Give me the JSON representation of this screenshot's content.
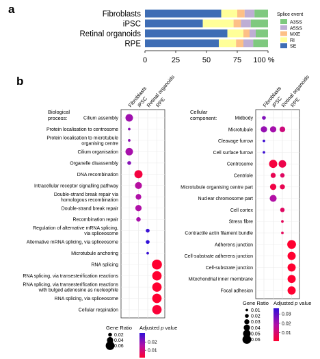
{
  "panel_a": {
    "label": "a",
    "chart_data": {
      "type": "bar",
      "orientation": "horizontal",
      "stacked": true,
      "categories": [
        "Fibroblasts",
        "iPSC",
        "Retinal organoids",
        "RPE"
      ],
      "xlim": [
        0,
        100
      ],
      "x_ticks": [
        "0",
        "25",
        "50",
        "75",
        "100 %"
      ],
      "legend": {
        "title": "Splice event",
        "placement": "right"
      },
      "series": [
        {
          "name": "SE",
          "color": "#3e6db5",
          "values": [
            62,
            47,
            67,
            60
          ]
        },
        {
          "name": "RI",
          "color": "#ffff99",
          "values": [
            13,
            25,
            13,
            14
          ]
        },
        {
          "name": "MXE",
          "color": "#fdc086",
          "values": [
            6,
            6,
            5,
            6
          ]
        },
        {
          "name": "A5SS",
          "color": "#beaed4",
          "values": [
            8,
            8,
            5,
            8
          ]
        },
        {
          "name": "A3SS",
          "color": "#7fc97f",
          "values": [
            11,
            14,
            10,
            12
          ]
        }
      ]
    }
  },
  "panel_b": {
    "label": "b",
    "columns": [
      "Fibroblasts",
      "iPSC",
      "Retinal organoids",
      "RPE"
    ],
    "left": {
      "title": [
        "Biological",
        "process:"
      ],
      "size_legend": {
        "title": "Gene Ratio",
        "values": [
          "0.02",
          "0.04",
          "0.06"
        ]
      },
      "color_legend": {
        "title_prefix": "Adjusted",
        "title_italic": "p",
        "title_suffix": "value",
        "ticks": [
          "0.02",
          "0.01"
        ]
      },
      "chart_data": {
        "type": "scatter",
        "x": [
          "Fibroblasts",
          "iPSC",
          "Retinal organoids",
          "RPE"
        ],
        "terms": [
          {
            "label": [
              "Cilium assembly"
            ],
            "col": "Fibroblasts",
            "gene_ratio": 0.05,
            "p_adj": 0.018
          },
          {
            "label": [
              "Protein localisation to centrosome"
            ],
            "col": "Fibroblasts",
            "gene_ratio": 0.01,
            "p_adj": 0.02
          },
          {
            "label": [
              "Protein localisation to microtubule",
              "organising centre"
            ],
            "col": "Fibroblasts",
            "gene_ratio": 0.01,
            "p_adj": 0.02
          },
          {
            "label": [
              "Cilium organisation"
            ],
            "col": "Fibroblasts",
            "gene_ratio": 0.05,
            "p_adj": 0.017
          },
          {
            "label": [
              "Organelle disassembly"
            ],
            "col": "Fibroblasts",
            "gene_ratio": 0.02,
            "p_adj": 0.021
          },
          {
            "label": [
              "DNA recombination"
            ],
            "col": "iPSC",
            "gene_ratio": 0.055,
            "p_adj": 0.003
          },
          {
            "label": [
              "Intracellular receptor signalling pathway"
            ],
            "col": "iPSC",
            "gene_ratio": 0.045,
            "p_adj": 0.015
          },
          {
            "label": [
              "Double-strand break repair via",
              "homologous recombination"
            ],
            "col": "iPSC",
            "gene_ratio": 0.035,
            "p_adj": 0.016
          },
          {
            "label": [
              "Double-strand break repair"
            ],
            "col": "iPSC",
            "gene_ratio": 0.04,
            "p_adj": 0.016
          },
          {
            "label": [
              "Recombination repair"
            ],
            "col": "iPSC",
            "gene_ratio": 0.025,
            "p_adj": 0.017
          },
          {
            "label": [
              "Regulation of alternative mRNA splicing,",
              "via spliceosome"
            ],
            "col": "Retinal organoids",
            "gene_ratio": 0.02,
            "p_adj": 0.03
          },
          {
            "label": [
              "Alternative mRNA splicing, via spliceosome"
            ],
            "col": "Retinal organoids",
            "gene_ratio": 0.02,
            "p_adj": 0.031
          },
          {
            "label": [
              "Microtubule anchoring"
            ],
            "col": "Retinal organoids",
            "gene_ratio": 0.01,
            "p_adj": 0.03
          },
          {
            "label": [
              "RNA splicing"
            ],
            "col": "RPE",
            "gene_ratio": 0.07,
            "p_adj": 0.001
          },
          {
            "label": [
              "RNA splicing, via transesterification reactions"
            ],
            "col": "RPE",
            "gene_ratio": 0.065,
            "p_adj": 0.001
          },
          {
            "label": [
              "RNA splicing, via transesterification reactions",
              "with bulged adenosine as nucleophile"
            ],
            "col": "RPE",
            "gene_ratio": 0.065,
            "p_adj": 0.001
          },
          {
            "label": [
              "RNA splicing, via spliceosome"
            ],
            "col": "RPE",
            "gene_ratio": 0.065,
            "p_adj": 0.001
          },
          {
            "label": [
              "Cellular respiration"
            ],
            "col": "RPE",
            "gene_ratio": 0.065,
            "p_adj": 0.002
          }
        ]
      }
    },
    "right": {
      "title": [
        "Cellular",
        "component:"
      ],
      "size_legend": {
        "title": "Gene Ratio",
        "values": [
          "0.01",
          "0.02",
          "0.03",
          "0.04",
          "0.05",
          "0.06"
        ]
      },
      "color_legend": {
        "title_prefix": "Adjusted",
        "title_italic": "p",
        "title_suffix": "value",
        "ticks": [
          "0.03",
          "0.02",
          "0.01"
        ]
      },
      "chart_data": {
        "type": "scatter",
        "x": [
          "Fibroblasts",
          "iPSC",
          "Retinal organoids",
          "RPE"
        ],
        "terms": [
          {
            "label": [
              "Midbody"
            ],
            "points": [
              {
                "col": "Fibroblasts",
                "gene_ratio": 0.02,
                "p_adj": 0.025
              }
            ]
          },
          {
            "label": [
              "Microtubule"
            ],
            "points": [
              {
                "col": "Fibroblasts",
                "gene_ratio": 0.04,
                "p_adj": 0.022
              },
              {
                "col": "iPSC",
                "gene_ratio": 0.04,
                "p_adj": 0.02
              },
              {
                "col": "Retinal organoids",
                "gene_ratio": 0.035,
                "p_adj": 0.012
              }
            ]
          },
          {
            "label": [
              "Cleavage furrow"
            ],
            "points": [
              {
                "col": "Fibroblasts",
                "gene_ratio": 0.01,
                "p_adj": 0.034
              }
            ]
          },
          {
            "label": [
              "Cell surface furrow"
            ],
            "points": [
              {
                "col": "Fibroblasts",
                "gene_ratio": 0.01,
                "p_adj": 0.034
              }
            ]
          },
          {
            "label": [
              "Centrosome"
            ],
            "points": [
              {
                "col": "iPSC",
                "gene_ratio": 0.055,
                "p_adj": 0.003
              },
              {
                "col": "Retinal organoids",
                "gene_ratio": 0.05,
                "p_adj": 0.005
              }
            ]
          },
          {
            "label": [
              "Centriole"
            ],
            "points": [
              {
                "col": "iPSC",
                "gene_ratio": 0.03,
                "p_adj": 0.006
              },
              {
                "col": "Retinal organoids",
                "gene_ratio": 0.025,
                "p_adj": 0.008
              }
            ]
          },
          {
            "label": [
              "Microtubule organising centre part"
            ],
            "points": [
              {
                "col": "iPSC",
                "gene_ratio": 0.04,
                "p_adj": 0.004
              },
              {
                "col": "Retinal organoids",
                "gene_ratio": 0.03,
                "p_adj": 0.006
              }
            ]
          },
          {
            "label": [
              "Nuclear chromosome part"
            ],
            "points": [
              {
                "col": "iPSC",
                "gene_ratio": 0.045,
                "p_adj": 0.018
              }
            ]
          },
          {
            "label": [
              "Cell cortex"
            ],
            "points": [
              {
                "col": "Retinal organoids",
                "gene_ratio": 0.025,
                "p_adj": 0.008
              }
            ]
          },
          {
            "label": [
              "Stress fibre"
            ],
            "points": [
              {
                "col": "Retinal organoids",
                "gene_ratio": 0.01,
                "p_adj": 0.007
              }
            ]
          },
          {
            "label": [
              "Contractile actin filament bundle"
            ],
            "points": [
              {
                "col": "Retinal organoids",
                "gene_ratio": 0.01,
                "p_adj": 0.007
              }
            ]
          },
          {
            "label": [
              "Adherens junction"
            ],
            "points": [
              {
                "col": "RPE",
                "gene_ratio": 0.06,
                "p_adj": 0.001
              }
            ]
          },
          {
            "label": [
              "Cell-substrate adherens junction"
            ],
            "points": [
              {
                "col": "RPE",
                "gene_ratio": 0.055,
                "p_adj": 0.001
              }
            ]
          },
          {
            "label": [
              "Cell-substrate junction"
            ],
            "points": [
              {
                "col": "RPE",
                "gene_ratio": 0.055,
                "p_adj": 0.001
              }
            ]
          },
          {
            "label": [
              "Mitochondrial inner membrane"
            ],
            "points": [
              {
                "col": "RPE",
                "gene_ratio": 0.055,
                "p_adj": 0.001
              }
            ]
          },
          {
            "label": [
              "Focal adhesion"
            ],
            "points": [
              {
                "col": "RPE",
                "gene_ratio": 0.055,
                "p_adj": 0.001
              }
            ]
          }
        ]
      }
    }
  }
}
